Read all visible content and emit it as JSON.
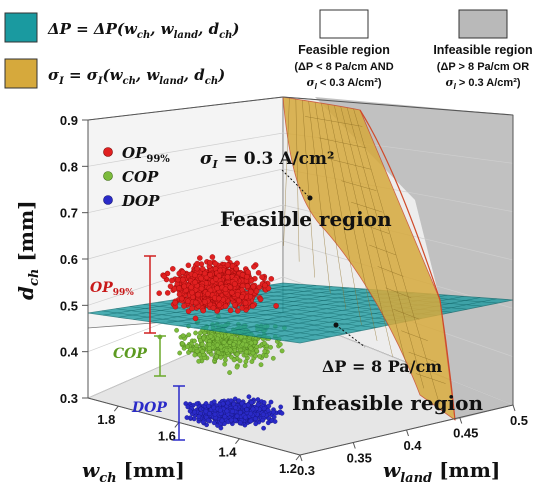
{
  "chart_data": {
    "type": "scatter",
    "title": "",
    "legend": {
      "dp_surface": "ΔP = ΔP(w",
      "dp_tail": ", w",
      "dp_tail2": ", d",
      "dp_end": ")",
      "sigma_surface": "σ",
      "sigma_eq": " = σ",
      "sigma_args": "(w",
      "sub_ch": "ch",
      "sub_land": "land",
      "sub_I": "I",
      "feasible_title": "Feasible region",
      "feasible_cond1": "(ΔP < 8 Pa/cm AND",
      "feasible_cond2": "σ",
      "feasible_cond2_tail": " < 0.3 A/cm²)",
      "infeasible_title": "Infeasible region",
      "infeasible_cond1": "(ΔP > 8 Pa/cm OR",
      "infeasible_cond2_tail": " > 0.3 A/cm²)",
      "colors": {
        "dp_surface": "#1a9aa0",
        "sigma_surface": "#d6a93c",
        "infeasible": "#b9b9b9",
        "feasible": "#ffffff"
      }
    },
    "axes": {
      "x": {
        "label": "w",
        "sub": "ch",
        "unit": " [mm]",
        "ticks": [
          "1.2",
          "1.4",
          "1.6",
          "1.8"
        ],
        "range": [
          1.2,
          1.9
        ]
      },
      "y": {
        "label": "w",
        "sub": "land",
        "unit": "  [mm]",
        "ticks": [
          "0.3",
          "0.35",
          "0.4",
          "0.45",
          "0.5"
        ],
        "range": [
          0.3,
          0.5
        ]
      },
      "z": {
        "label": "d",
        "sub": "ch",
        "unit": " [mm]",
        "ticks": [
          "0.3",
          "0.4",
          "0.5",
          "0.6",
          "0.7",
          "0.8",
          "0.9"
        ],
        "range": [
          0.3,
          0.9
        ]
      }
    },
    "series": [
      {
        "name": "OP",
        "sub": "99%",
        "color": "#e02020",
        "wch_mean": 1.45,
        "wland_mean": 0.31,
        "dch_range": [
          0.49,
          0.62
        ]
      },
      {
        "name": "COP",
        "color": "#7cbb3c",
        "wch_mean": 1.45,
        "wland_mean": 0.31,
        "dch_range": [
          0.4,
          0.5
        ]
      },
      {
        "name": "DOP",
        "color": "#2a2ac8",
        "wch_mean": 1.45,
        "wland_mean": 0.31,
        "dch_range": [
          0.31,
          0.36
        ]
      }
    ],
    "annotations": {
      "sigma_label": "σ",
      "sigma_label_tail": " = 0.3 A/cm²",
      "dp_label": "ΔP = 8 Pa/cm",
      "feasible_label": "Feasible region",
      "infeasible_label": "Infeasible region",
      "op_bracket": "OP",
      "op_bracket_sub": "99%",
      "cop_bracket": "COP",
      "dop_bracket": "DOP"
    }
  }
}
